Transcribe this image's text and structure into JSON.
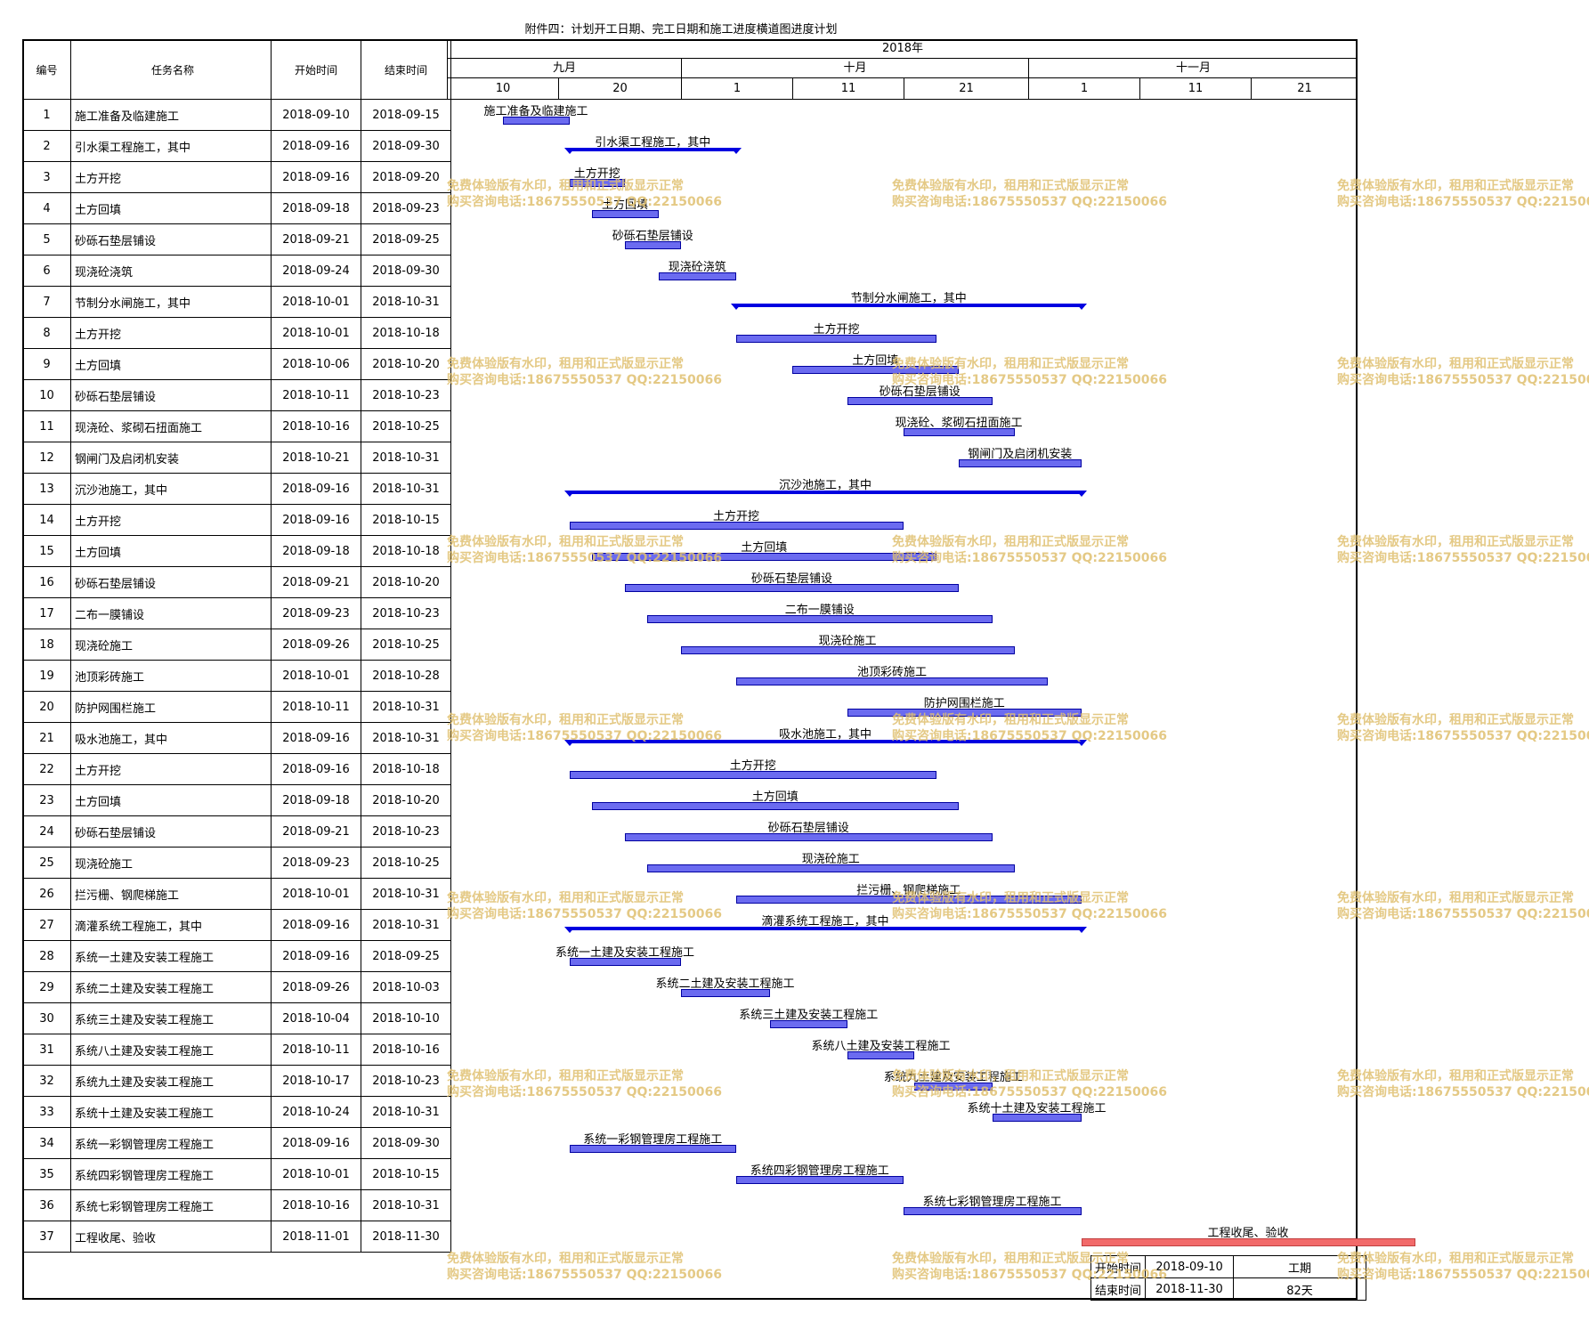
{
  "title": "附件四：计划开工日期、完工日期和施工进度横道图进度计划",
  "columns": {
    "no": "编号",
    "name": "任务名称",
    "start": "开始时间",
    "end": "结束时间"
  },
  "timeline": {
    "year": "2018年",
    "months": [
      "九月",
      "十月",
      "十一月"
    ],
    "days": [
      "10",
      "20",
      "1",
      "11",
      "21",
      "1",
      "11",
      "21"
    ],
    "range_start": "2018-09-10",
    "range_end": "2018-11-30"
  },
  "tasks": [
    {
      "no": "1",
      "name": "施工准备及临建施工",
      "start": "2018-09-10",
      "end": "2018-09-15",
      "type": "task"
    },
    {
      "no": "2",
      "name": "引水渠工程施工，其中",
      "start": "2018-09-16",
      "end": "2018-09-30",
      "type": "summary"
    },
    {
      "no": "3",
      "name": "土方开挖",
      "start": "2018-09-16",
      "end": "2018-09-20",
      "type": "task"
    },
    {
      "no": "4",
      "name": "土方回填",
      "start": "2018-09-18",
      "end": "2018-09-23",
      "type": "task"
    },
    {
      "no": "5",
      "name": "砂砾石垫层铺设",
      "start": "2018-09-21",
      "end": "2018-09-25",
      "type": "task"
    },
    {
      "no": "6",
      "name": "现浇砼浇筑",
      "start": "2018-09-24",
      "end": "2018-09-30",
      "type": "task"
    },
    {
      "no": "7",
      "name": "节制分水闸施工，其中",
      "start": "2018-10-01",
      "end": "2018-10-31",
      "type": "summary"
    },
    {
      "no": "8",
      "name": "土方开挖",
      "start": "2018-10-01",
      "end": "2018-10-18",
      "type": "task"
    },
    {
      "no": "9",
      "name": "土方回填",
      "start": "2018-10-06",
      "end": "2018-10-20",
      "type": "task"
    },
    {
      "no": "10",
      "name": "砂砾石垫层铺设",
      "start": "2018-10-11",
      "end": "2018-10-23",
      "type": "task"
    },
    {
      "no": "11",
      "name": "现浇砼、浆砌石扭面施工",
      "start": "2018-10-16",
      "end": "2018-10-25",
      "type": "task"
    },
    {
      "no": "12",
      "name": "钢闸门及启闭机安装",
      "start": "2018-10-21",
      "end": "2018-10-31",
      "type": "task"
    },
    {
      "no": "13",
      "name": "沉沙池施工，其中",
      "start": "2018-09-16",
      "end": "2018-10-31",
      "type": "summary"
    },
    {
      "no": "14",
      "name": "土方开挖",
      "start": "2018-09-16",
      "end": "2018-10-15",
      "type": "task"
    },
    {
      "no": "15",
      "name": "土方回填",
      "start": "2018-09-18",
      "end": "2018-10-18",
      "type": "task"
    },
    {
      "no": "16",
      "name": "砂砾石垫层铺设",
      "start": "2018-09-21",
      "end": "2018-10-20",
      "type": "task"
    },
    {
      "no": "17",
      "name": "二布一膜铺设",
      "start": "2018-09-23",
      "end": "2018-10-23",
      "type": "task"
    },
    {
      "no": "18",
      "name": "现浇砼施工",
      "start": "2018-09-26",
      "end": "2018-10-25",
      "type": "task"
    },
    {
      "no": "19",
      "name": "池顶彩砖施工",
      "start": "2018-10-01",
      "end": "2018-10-28",
      "type": "task"
    },
    {
      "no": "20",
      "name": "防护网围栏施工",
      "start": "2018-10-11",
      "end": "2018-10-31",
      "type": "task"
    },
    {
      "no": "21",
      "name": "吸水池施工，其中",
      "start": "2018-09-16",
      "end": "2018-10-31",
      "type": "summary"
    },
    {
      "no": "22",
      "name": "土方开挖",
      "start": "2018-09-16",
      "end": "2018-10-18",
      "type": "task"
    },
    {
      "no": "23",
      "name": "土方回填",
      "start": "2018-09-18",
      "end": "2018-10-20",
      "type": "task"
    },
    {
      "no": "24",
      "name": "砂砾石垫层铺设",
      "start": "2018-09-21",
      "end": "2018-10-23",
      "type": "task"
    },
    {
      "no": "25",
      "name": "现浇砼施工",
      "start": "2018-09-23",
      "end": "2018-10-25",
      "type": "task"
    },
    {
      "no": "26",
      "name": "拦污栅、钢爬梯施工",
      "start": "2018-10-01",
      "end": "2018-10-31",
      "type": "task"
    },
    {
      "no": "27",
      "name": "滴灌系统工程施工，其中",
      "start": "2018-09-16",
      "end": "2018-10-31",
      "type": "summary"
    },
    {
      "no": "28",
      "name": "系统一土建及安装工程施工",
      "start": "2018-09-16",
      "end": "2018-09-25",
      "type": "task"
    },
    {
      "no": "29",
      "name": "系统二土建及安装工程施工",
      "start": "2018-09-26",
      "end": "2018-10-03",
      "type": "task"
    },
    {
      "no": "30",
      "name": "系统三土建及安装工程施工",
      "start": "2018-10-04",
      "end": "2018-10-10",
      "type": "task"
    },
    {
      "no": "31",
      "name": "系统八土建及安装工程施工",
      "start": "2018-10-11",
      "end": "2018-10-16",
      "type": "task"
    },
    {
      "no": "32",
      "name": "系统九土建及安装工程施工",
      "start": "2018-10-17",
      "end": "2018-10-23",
      "type": "task"
    },
    {
      "no": "33",
      "name": "系统十土建及安装工程施工",
      "start": "2018-10-24",
      "end": "2018-10-31",
      "type": "task"
    },
    {
      "no": "34",
      "name": "系统一彩钢管理房工程施工",
      "start": "2018-09-16",
      "end": "2018-09-30",
      "type": "task"
    },
    {
      "no": "35",
      "name": "系统四彩钢管理房工程施工",
      "start": "2018-10-01",
      "end": "2018-10-15",
      "type": "task"
    },
    {
      "no": "36",
      "name": "系统七彩钢管理房工程施工",
      "start": "2018-10-16",
      "end": "2018-10-31",
      "type": "task"
    },
    {
      "no": "37",
      "name": "工程收尾、验收",
      "start": "2018-11-01",
      "end": "2018-11-30",
      "type": "final"
    }
  ],
  "summary": {
    "start_label": "开始时间",
    "start_value": "2018-09-10",
    "end_label": "结束时间",
    "end_value": "2018-11-30",
    "duration_label": "工期",
    "duration_value": "82天"
  },
  "watermark": {
    "line1": "免费体验版有水印，租用和正式版显示正常",
    "line2": "购买咨询电话:18675550537 QQ:22150066"
  },
  "colors": {
    "bar": "#6b6bf0",
    "summary": "#0000e0",
    "final": "#f26a6a",
    "watermark": "#e0c070"
  }
}
